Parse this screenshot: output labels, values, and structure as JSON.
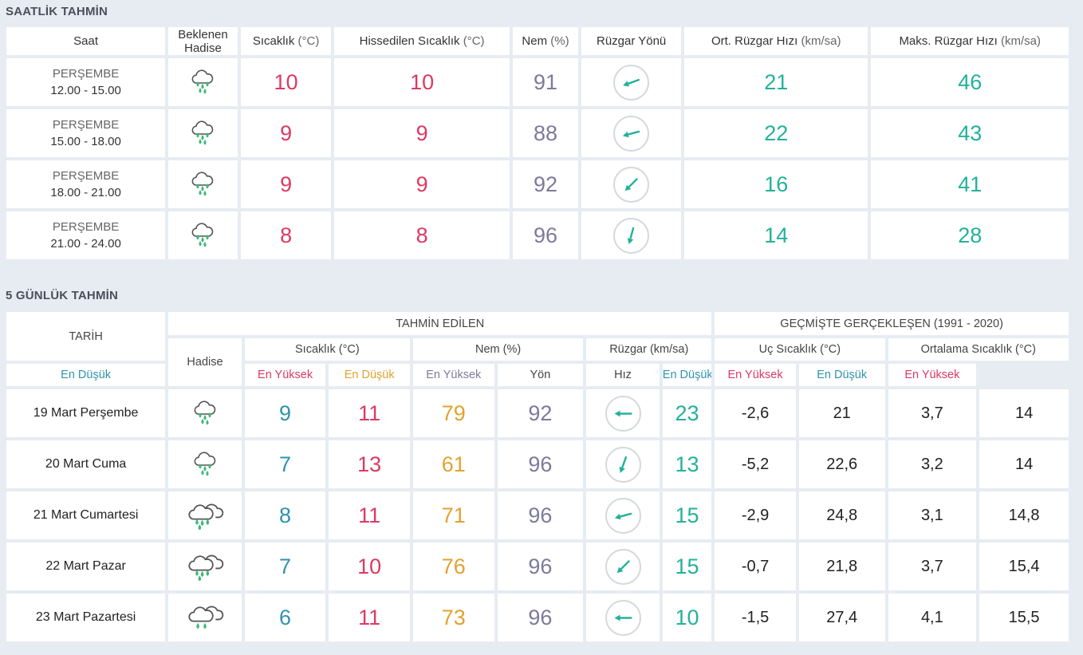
{
  "hourly": {
    "title": "SAATLİK TAHMİN",
    "headers": {
      "saat": "Saat",
      "hadise_line1": "Beklenen",
      "hadise_line2": "Hadise",
      "sicaklik": "Sıcaklık",
      "sicaklik_unit": "(°C)",
      "hissedilen": "Hissedilen Sıcaklık",
      "hissedilen_unit": "(°C)",
      "nem": "Nem",
      "nem_unit": "(%)",
      "ruzgar_yonu": "Rüzgar Yönü",
      "ort_ruzgar": "Ort. Rüzgar Hızı",
      "ort_ruzgar_unit": "(km/sa)",
      "maks_ruzgar": "Maks. Rüzgar Hızı",
      "maks_ruzgar_unit": "(km/sa)"
    },
    "rows": [
      {
        "day": "PERŞEMBE",
        "time": "12.00 - 15.00",
        "icon": "rain-cloud-icon",
        "temp": "10",
        "feels": "10",
        "humidity": "91",
        "wind_dir_deg": 250,
        "avg_wind": "21",
        "max_wind": "46"
      },
      {
        "day": "PERŞEMBE",
        "time": "15.00 - 18.00",
        "icon": "rain-cloud-icon",
        "temp": "9",
        "feels": "9",
        "humidity": "88",
        "wind_dir_deg": 255,
        "avg_wind": "22",
        "max_wind": "43"
      },
      {
        "day": "PERŞEMBE",
        "time": "18.00 - 21.00",
        "icon": "rain-cloud-icon",
        "temp": "9",
        "feels": "9",
        "humidity": "92",
        "wind_dir_deg": 225,
        "avg_wind": "16",
        "max_wind": "41"
      },
      {
        "day": "PERŞEMBE",
        "time": "21.00 - 24.00",
        "icon": "rain-cloud-icon",
        "temp": "8",
        "feels": "8",
        "humidity": "96",
        "wind_dir_deg": 195,
        "avg_wind": "14",
        "max_wind": "28"
      }
    ]
  },
  "daily": {
    "title": "5 GÜNLÜK TAHMİN",
    "headers": {
      "tarih": "TARİH",
      "tahmin_edilen": "TAHMİN EDİLEN",
      "gecmis": "GEÇMİŞTE GERÇEKLEŞEN (1991 - 2020)",
      "hadise": "Hadise",
      "sicaklik": "Sıcaklık (°C)",
      "nem": "Nem (%)",
      "ruzgar": "Rüzgar (km/sa)",
      "uc_sicaklik": "Uç Sıcaklık (°C)",
      "ort_sicaklik": "Ortalama Sıcaklık (°C)",
      "en_dusuk": "En Düşük",
      "en_yuksek": "En Yüksek",
      "yon": "Yön",
      "hiz": "Hız"
    },
    "rows": [
      {
        "date": "19 Mart Perşembe",
        "icon": "rain-cloud-icon",
        "t_low": "9",
        "t_high": "11",
        "h_low": "79",
        "h_high": "92",
        "wind_dir_deg": 270,
        "wind_speed": "23",
        "x_low": "-2,6",
        "x_high": "21",
        "a_low": "3,7",
        "a_high": "14"
      },
      {
        "date": "20 Mart Cuma",
        "icon": "rain-cloud-icon",
        "t_low": "7",
        "t_high": "13",
        "h_low": "61",
        "h_high": "96",
        "wind_dir_deg": 200,
        "wind_speed": "13",
        "x_low": "-5,2",
        "x_high": "22,6",
        "a_low": "3,2",
        "a_high": "14"
      },
      {
        "date": "21 Mart Cumartesi",
        "icon": "double-rain-cloud-icon",
        "t_low": "8",
        "t_high": "11",
        "h_low": "71",
        "h_high": "96",
        "wind_dir_deg": 255,
        "wind_speed": "15",
        "x_low": "-2,9",
        "x_high": "24,8",
        "a_low": "3,1",
        "a_high": "14,8"
      },
      {
        "date": "22 Mart Pazar",
        "icon": "double-rain-cloud-icon",
        "t_low": "7",
        "t_high": "10",
        "h_low": "76",
        "h_high": "96",
        "wind_dir_deg": 225,
        "wind_speed": "15",
        "x_low": "-0,7",
        "x_high": "21,8",
        "a_low": "3,7",
        "a_high": "15,4"
      },
      {
        "date": "23 Mart Pazartesi",
        "icon": "double-drizzle-cloud-icon",
        "t_low": "6",
        "t_high": "11",
        "h_low": "73",
        "h_high": "96",
        "wind_dir_deg": 270,
        "wind_speed": "10",
        "x_low": "-1,5",
        "x_high": "27,4",
        "a_low": "4,1",
        "a_high": "15,5"
      }
    ]
  },
  "colors": {
    "temp": "#dc3a63",
    "humidity": "#7d7a9b",
    "wind": "#23b29a",
    "low": "#2e93ad",
    "orange": "#e1a22f",
    "background": "#e6ecf2"
  }
}
